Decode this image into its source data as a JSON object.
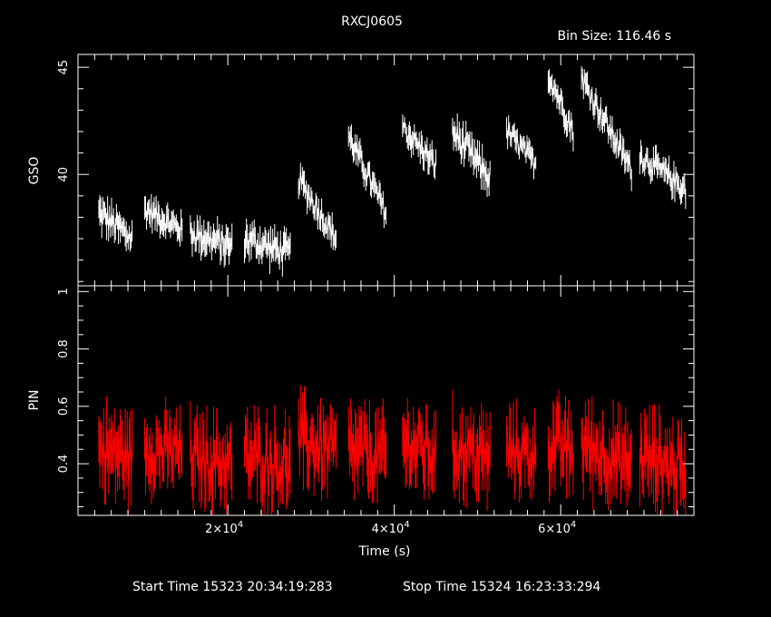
{
  "header": {
    "title": "RXCJ0605",
    "bin_size": "Bin Size: 116.46 s"
  },
  "footer": {
    "start_time": "Start Time 15323 20:34:19:283",
    "stop_time": "Stop Time 15324 16:23:33:294"
  },
  "colors": {
    "gso": "#ffffff",
    "pin": "#ff0000",
    "axes": "#ffffff",
    "background": "#000000"
  },
  "chart_data": [
    {
      "type": "line",
      "panel": "top",
      "ylabel": "GSO",
      "xlabel": "",
      "xlim": [
        2000,
        76000
      ],
      "ylim": [
        34.8,
        45.6
      ],
      "yticks": [
        {
          "value": 40,
          "label": "40"
        },
        {
          "value": 45,
          "label": "45"
        }
      ],
      "series": [
        {
          "segments": [
            {
              "x0": 4500,
              "x1": 8500,
              "y0": 38.2,
              "y1": 37.0,
              "noise": 1.2
            },
            {
              "x0": 10000,
              "x1": 14500,
              "y0": 38.4,
              "y1": 37.4,
              "noise": 1.0
            },
            {
              "x0": 15500,
              "x1": 20500,
              "y0": 37.3,
              "y1": 36.6,
              "noise": 1.2
            },
            {
              "x0": 22000,
              "x1": 27500,
              "y0": 37.0,
              "y1": 36.3,
              "noise": 1.2
            },
            {
              "x0": 28500,
              "x1": 33000,
              "y0": 39.8,
              "y1": 37.0,
              "noise": 1.0
            },
            {
              "x0": 34500,
              "x1": 39000,
              "y0": 41.8,
              "y1": 38.2,
              "noise": 1.0
            },
            {
              "x0": 41000,
              "x1": 45000,
              "y0": 42.2,
              "y1": 40.4,
              "noise": 1.0
            },
            {
              "x0": 47000,
              "x1": 51500,
              "y0": 42.0,
              "y1": 39.8,
              "noise": 1.2
            },
            {
              "x0": 53500,
              "x1": 57000,
              "y0": 42.0,
              "y1": 40.5,
              "noise": 0.9
            },
            {
              "x0": 58500,
              "x1": 61500,
              "y0": 44.7,
              "y1": 42.0,
              "noise": 1.0
            },
            {
              "x0": 62500,
              "x1": 68500,
              "y0": 44.5,
              "y1": 40.2,
              "noise": 1.0
            },
            {
              "x0": 69500,
              "x1": 75000,
              "y0": 40.9,
              "y1": 39.3,
              "noise": 1.0
            }
          ]
        }
      ]
    },
    {
      "type": "line",
      "panel": "bottom",
      "ylabel": "PIN",
      "xlabel": "Time (s)",
      "xlim": [
        2000,
        76000
      ],
      "ylim": [
        0.22,
        1.02
      ],
      "yticks": [
        {
          "value": 0.4,
          "label": "0.4"
        },
        {
          "value": 0.6,
          "label": "0.6"
        },
        {
          "value": 0.8,
          "label": "0.8"
        },
        {
          "value": 1.0,
          "label": "1"
        }
      ],
      "xticks": [
        {
          "value": 20000,
          "mant": "2×10",
          "exp": "4"
        },
        {
          "value": 40000,
          "mant": "4×10",
          "exp": "4"
        },
        {
          "value": 60000,
          "mant": "6×10",
          "exp": "4"
        }
      ],
      "series": [
        {
          "segments": [
            {
              "x0": 4500,
              "x1": 8500,
              "y0": 0.45,
              "y1": 0.42,
              "noise": 0.2
            },
            {
              "x0": 10000,
              "x1": 14500,
              "y0": 0.45,
              "y1": 0.44,
              "noise": 0.18
            },
            {
              "x0": 15500,
              "x1": 20500,
              "y0": 0.42,
              "y1": 0.4,
              "noise": 0.2
            },
            {
              "x0": 22000,
              "x1": 27500,
              "y0": 0.42,
              "y1": 0.4,
              "noise": 0.2
            },
            {
              "x0": 28500,
              "x1": 33000,
              "y0": 0.48,
              "y1": 0.44,
              "noise": 0.2
            },
            {
              "x0": 34500,
              "x1": 39000,
              "y0": 0.45,
              "y1": 0.42,
              "noise": 0.2
            },
            {
              "x0": 41000,
              "x1": 45000,
              "y0": 0.47,
              "y1": 0.43,
              "noise": 0.2
            },
            {
              "x0": 47000,
              "x1": 51500,
              "y0": 0.45,
              "y1": 0.42,
              "noise": 0.2
            },
            {
              "x0": 53500,
              "x1": 57000,
              "y0": 0.45,
              "y1": 0.42,
              "noise": 0.18
            },
            {
              "x0": 58500,
              "x1": 61500,
              "y0": 0.47,
              "y1": 0.44,
              "noise": 0.2
            },
            {
              "x0": 62500,
              "x1": 68500,
              "y0": 0.46,
              "y1": 0.4,
              "noise": 0.2
            },
            {
              "x0": 69500,
              "x1": 75000,
              "y0": 0.43,
              "y1": 0.38,
              "noise": 0.2
            }
          ]
        }
      ]
    }
  ]
}
